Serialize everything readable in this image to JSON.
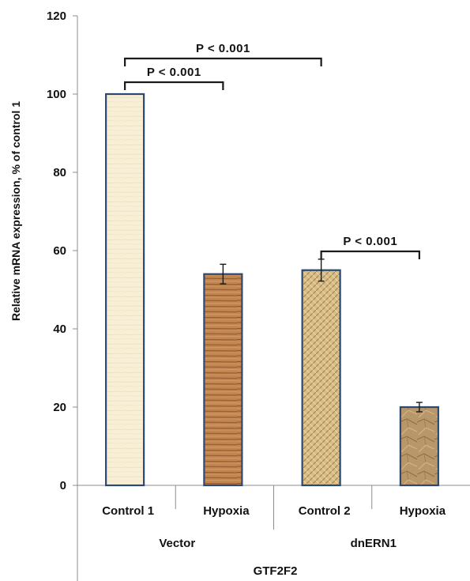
{
  "chart_data": {
    "type": "bar",
    "ylabel": "Relative mRNA expression, % of control 1",
    "ylim": [
      0,
      120
    ],
    "yticks": [
      "0",
      "20",
      "40",
      "60",
      "80",
      "100",
      "120"
    ],
    "categories": [
      "Control 1",
      "Hypoxia",
      "Control 2",
      "Hypoxia"
    ],
    "values": [
      100,
      54,
      55,
      20
    ],
    "errors": [
      0,
      2.5,
      2.8,
      1.2
    ],
    "groups": [
      "Vector",
      "dnERN1"
    ],
    "supergroup": "GTF2F2",
    "significance": [
      {
        "from": 0,
        "to": 1,
        "label": "P < 0.001"
      },
      {
        "from": 0,
        "to": 2,
        "label": "P < 0.001"
      },
      {
        "from": 2,
        "to": 3,
        "label": "P < 0.001"
      }
    ],
    "colors": {
      "control1": "#f7edd3",
      "hypoxia1": "#b97a47",
      "control2": "#d3b57f",
      "hypoxia2": "#b8966a",
      "bar_outline": "#2b4a73"
    }
  }
}
